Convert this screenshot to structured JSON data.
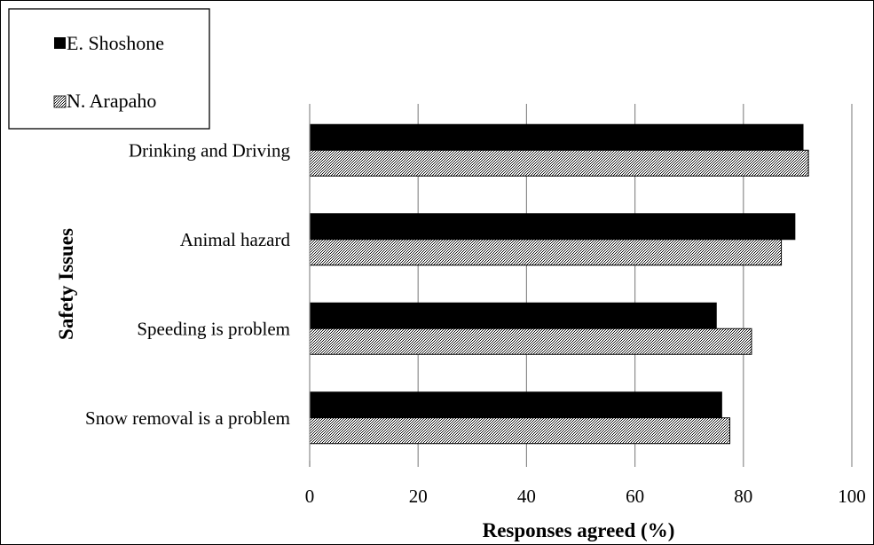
{
  "chart_data": {
    "type": "bar",
    "orientation": "horizontal",
    "categories": [
      "Drinking and Driving",
      "Animal hazard",
      "Speeding is problem",
      "Snow removal is a problem"
    ],
    "series": [
      {
        "name": "E. Shoshone",
        "values": [
          91,
          89.5,
          75,
          76
        ],
        "pattern": "solid",
        "color": "#000000"
      },
      {
        "name": "N. Arapaho",
        "values": [
          92,
          87,
          81.5,
          77.5
        ],
        "pattern": "crosshatch",
        "color": "#000000"
      }
    ],
    "xlabel": "Responses agreed (%)",
    "ylabel": "Safety Issues",
    "xlim": [
      0,
      100
    ],
    "xticks": [
      0,
      20,
      40,
      60,
      80,
      100
    ],
    "grid": "vertical",
    "legend_position": "top-left"
  }
}
